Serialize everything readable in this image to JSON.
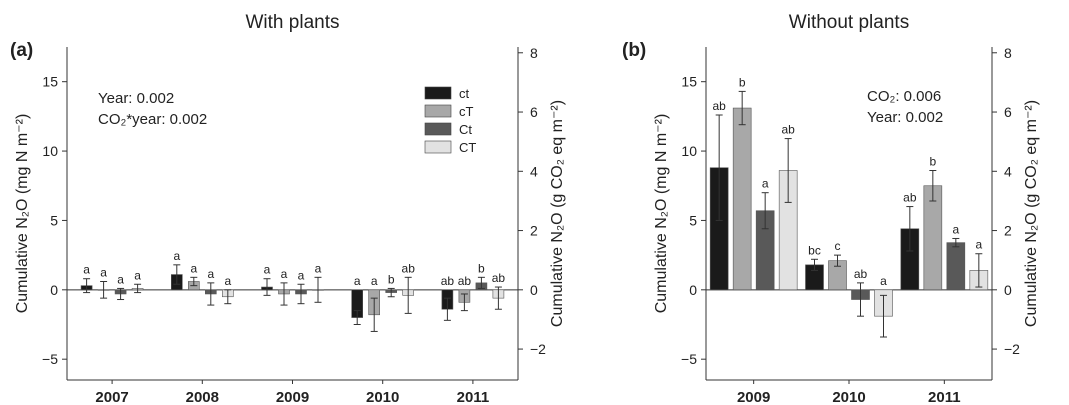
{
  "colors": {
    "ct": "#1a1a1a",
    "cT": "#a8a8a8",
    "Ct": "#595959",
    "CT": "#e2e2e2",
    "axis": "#333333"
  },
  "chart_data": [
    {
      "type": "bar",
      "panel": "(a)",
      "title": "With plants",
      "ylabel": "Cumulative N₂O (mg N m⁻²)",
      "y2label": "Cumulative N₂O (g CO₂ eq m⁻²)",
      "ylim": [
        -6.5,
        17.5
      ],
      "yticks": [
        -5,
        0,
        5,
        10,
        15
      ],
      "y2ticks": [
        -2,
        0,
        2,
        4,
        6,
        8
      ],
      "categories": [
        "2007",
        "2008",
        "2009",
        "2010",
        "2011"
      ],
      "series": [
        {
          "name": "ct",
          "values": [
            0.3,
            1.1,
            0.2,
            -2.0,
            -1.4
          ],
          "errors": [
            0.5,
            0.7,
            0.6,
            0.5,
            0.8
          ]
        },
        {
          "name": "cT",
          "values": [
            0.0,
            0.6,
            -0.3,
            -1.8,
            -0.9
          ],
          "errors": [
            0.6,
            0.3,
            0.8,
            1.2,
            0.6
          ]
        },
        {
          "name": "Ct",
          "values": [
            -0.3,
            -0.3,
            -0.3,
            -0.2,
            0.5
          ],
          "errors": [
            0.4,
            0.8,
            0.7,
            0.3,
            0.4
          ]
        },
        {
          "name": "CT",
          "values": [
            0.1,
            -0.5,
            0.0,
            -0.4,
            -0.6
          ],
          "errors": [
            0.3,
            0.5,
            0.9,
            1.3,
            0.8
          ]
        }
      ],
      "letters": [
        [
          "a",
          "a",
          "a",
          "a"
        ],
        [
          "a",
          "a",
          "a",
          "a"
        ],
        [
          "a",
          "a",
          "a",
          "a"
        ],
        [
          "a",
          "a",
          "b",
          "ab"
        ],
        [
          "ab",
          "ab",
          "b",
          "ab"
        ]
      ],
      "annotations": [
        "Year: 0.002",
        "CO₂*year: 0.002"
      ],
      "legend": [
        "ct",
        "cT",
        "Ct",
        "CT"
      ]
    },
    {
      "type": "bar",
      "panel": "(b)",
      "title": "Without plants",
      "ylabel": "Cumulative N₂O (mg N m⁻²)",
      "y2label": "Cumulative N₂O (g CO₂ eq m⁻²)",
      "ylim": [
        -6.5,
        17.5
      ],
      "yticks": [
        -5,
        0,
        5,
        10,
        15
      ],
      "y2ticks": [
        -2,
        0,
        2,
        4,
        6,
        8
      ],
      "categories": [
        "2009",
        "2010",
        "2011"
      ],
      "series": [
        {
          "name": "ct",
          "values": [
            8.8,
            1.8,
            4.4
          ],
          "errors": [
            3.8,
            0.4,
            1.6
          ]
        },
        {
          "name": "cT",
          "values": [
            13.1,
            2.1,
            7.5
          ],
          "errors": [
            1.2,
            0.4,
            1.1
          ]
        },
        {
          "name": "Ct",
          "values": [
            5.7,
            -0.7,
            3.4
          ],
          "errors": [
            1.3,
            1.2,
            0.3
          ]
        },
        {
          "name": "CT",
          "values": [
            8.6,
            -1.9,
            1.4
          ],
          "errors": [
            2.3,
            1.5,
            1.2
          ]
        }
      ],
      "letters": [
        [
          "ab",
          "b",
          "a",
          "ab"
        ],
        [
          "bc",
          "c",
          "ab",
          "a"
        ],
        [
          "ab",
          "b",
          "a",
          "a"
        ]
      ],
      "annotations": [
        "CO₂: 0.006",
        "Year: 0.002"
      ]
    }
  ]
}
